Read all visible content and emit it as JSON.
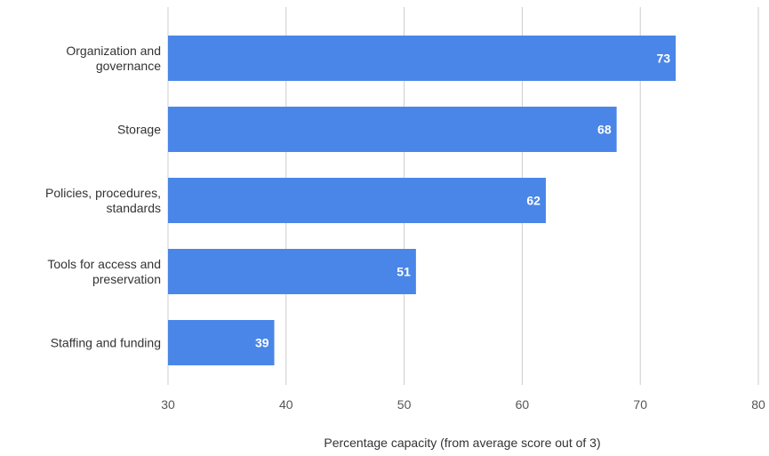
{
  "chart_data": {
    "type": "bar",
    "orientation": "horizontal",
    "categories": [
      [
        "Organization and",
        "governance"
      ],
      [
        "Storage"
      ],
      [
        "Policies, procedures,",
        "standards"
      ],
      [
        "Tools for access and",
        "preservation"
      ],
      [
        "Staffing and funding"
      ]
    ],
    "values": [
      73,
      68,
      62,
      51,
      39
    ],
    "value_labels": [
      "73",
      "68",
      "62",
      "51",
      "39"
    ],
    "xlabel": "Percentage capacity (from average score out of 3)",
    "ylabel": "",
    "xlim": [
      30,
      80
    ],
    "xticks": [
      30,
      40,
      50,
      60,
      70,
      80
    ],
    "xtick_labels": [
      "30",
      "40",
      "50",
      "60",
      "70",
      "80"
    ],
    "grid": "vertical",
    "legend": "none",
    "colors": {
      "bar": "#4a86e8",
      "value_label": "#ffffff",
      "gridline": "#cccccc"
    }
  }
}
